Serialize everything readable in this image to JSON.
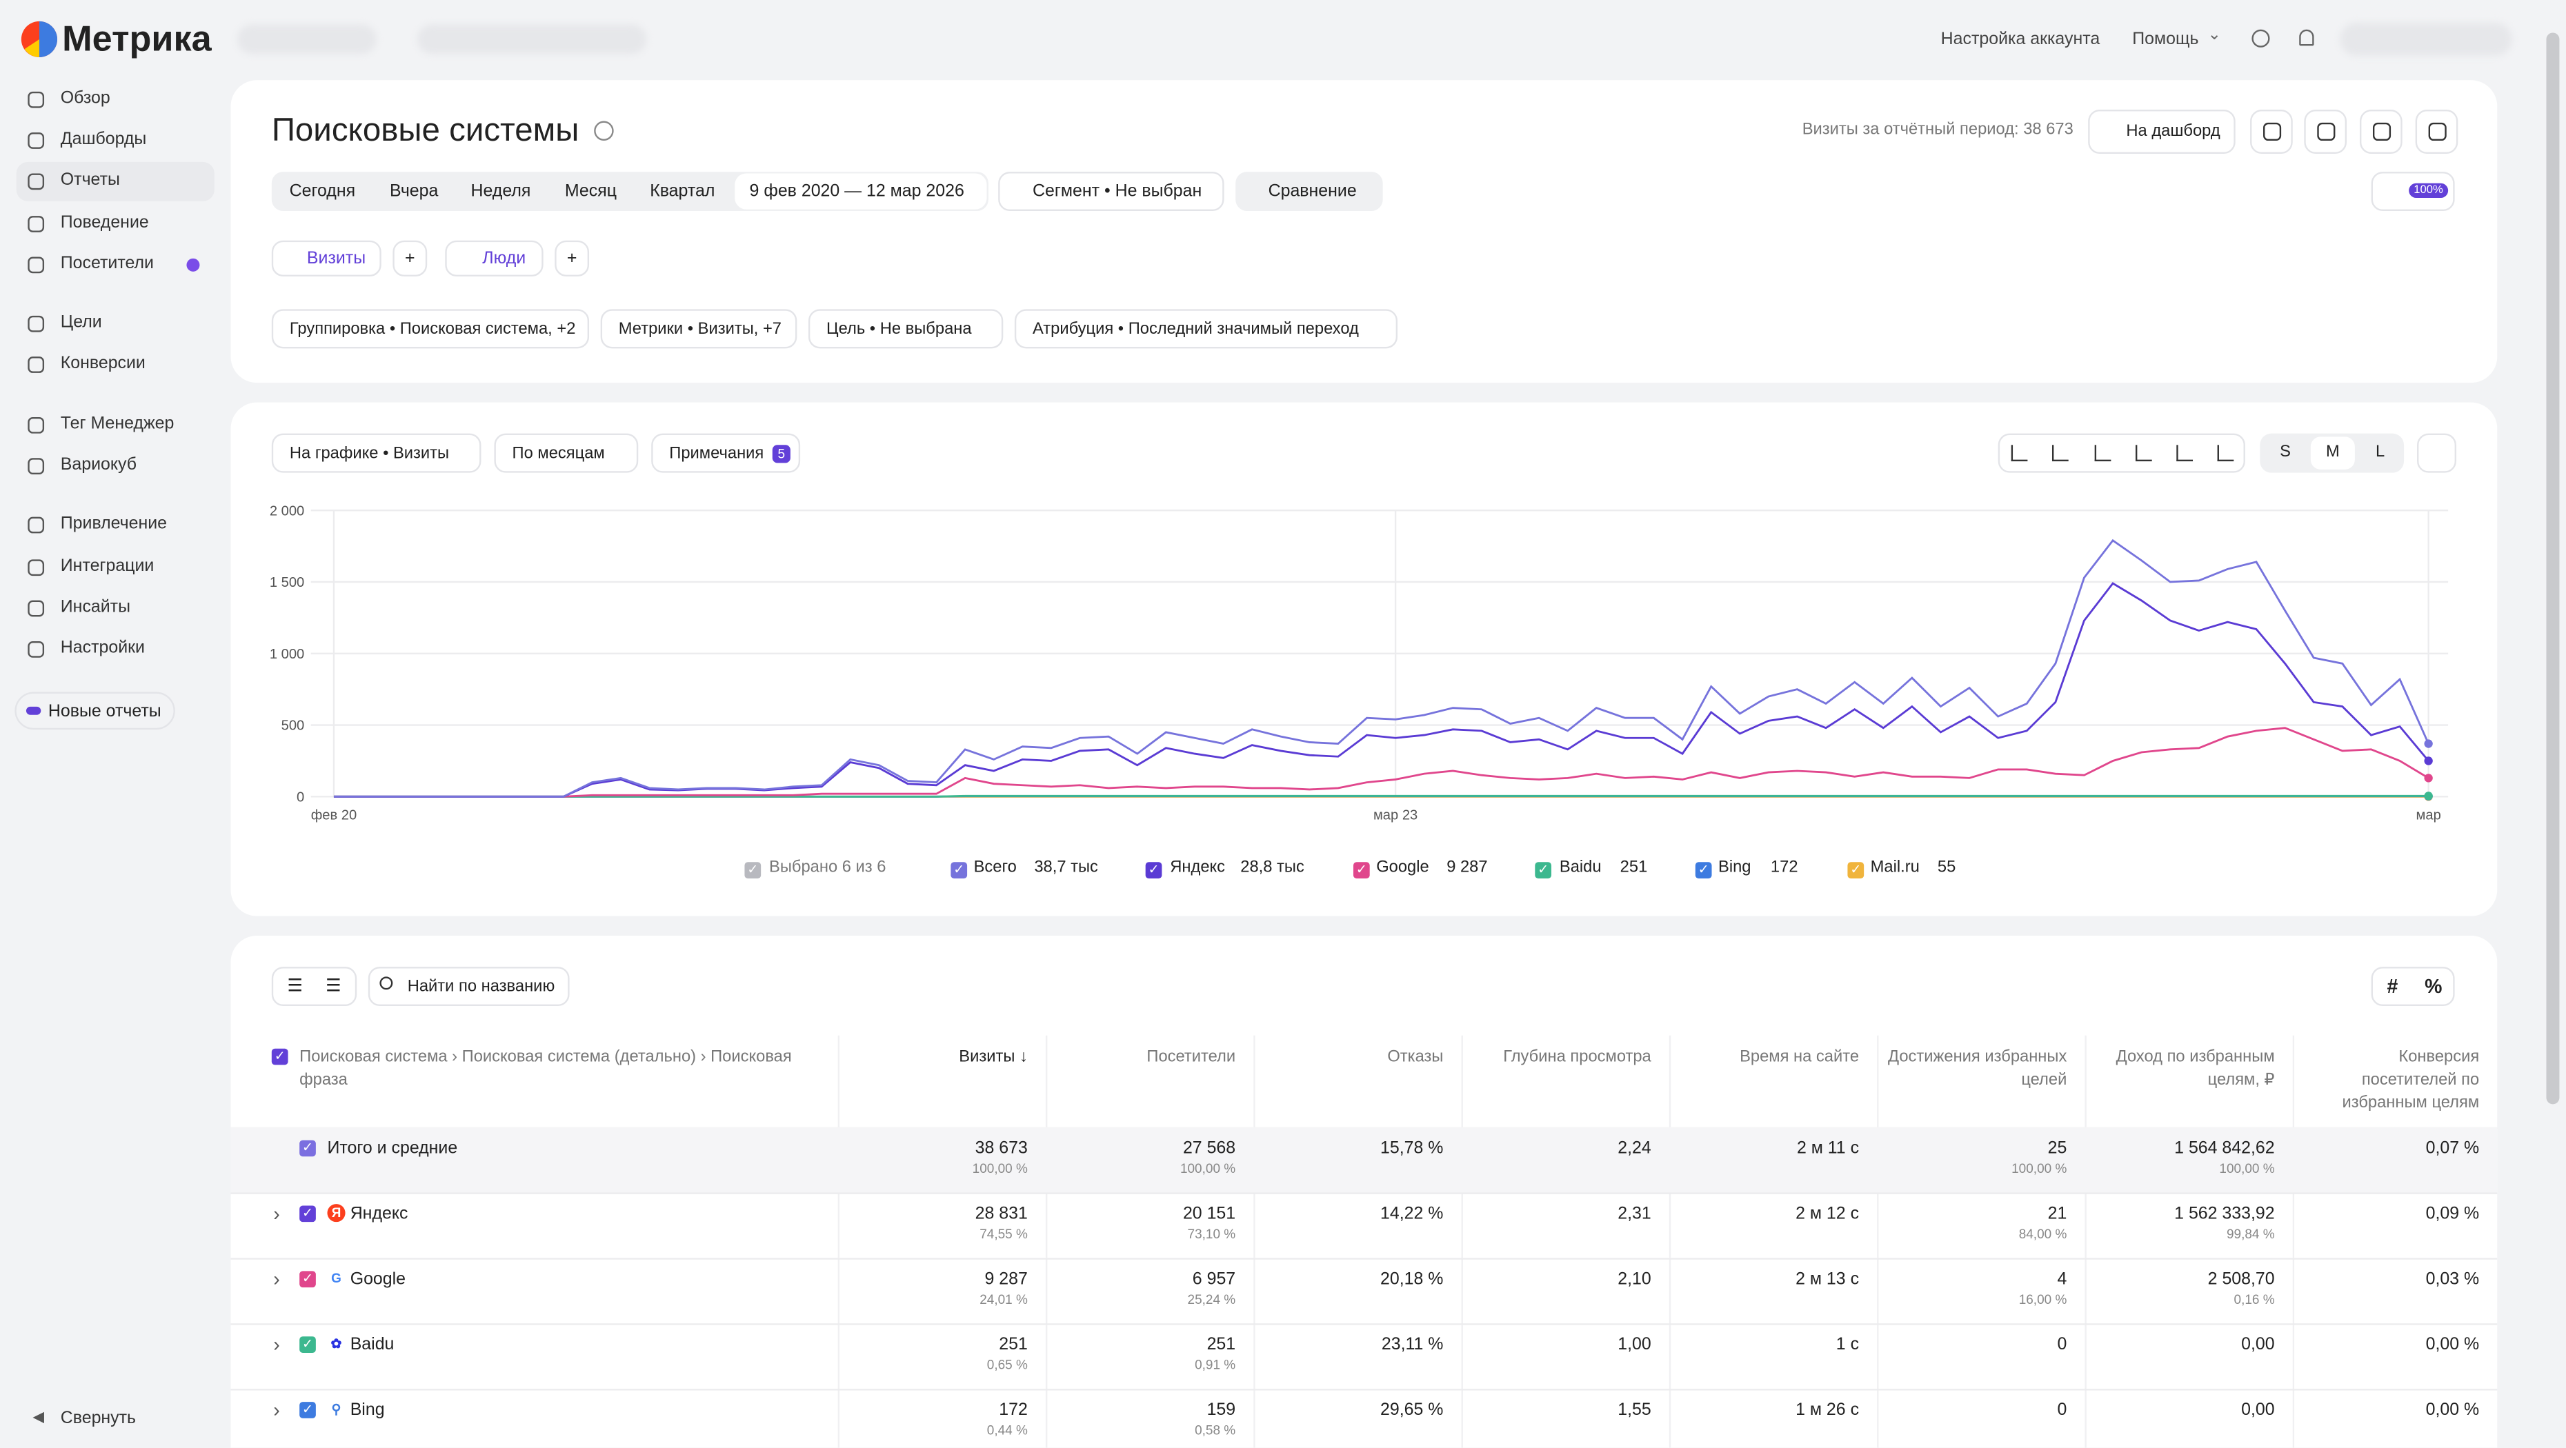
{
  "logo": "Метрика",
  "nav": [
    "Обзор",
    "Дашборды",
    "Отчеты",
    "Поведение",
    "Посетители",
    "Цели",
    "Конверсии",
    "Тег Менеджер",
    "Вариокуб",
    "Привлечение",
    "Интеграции",
    "Инсайты",
    "Настройки"
  ],
  "new_reports": "Новые отчеты",
  "collapse": "Свернуть",
  "topbar": {
    "account": "Настройка аккаунта",
    "help": "Помощь"
  },
  "header": {
    "title": "Поисковые системы",
    "visits_period": "Визиты за отчётный период: 38 673",
    "to_dashboard": "На дашборд"
  },
  "periods": [
    "Сегодня",
    "Вчера",
    "Неделя",
    "Месяц",
    "Квартал"
  ],
  "date_range": "9 фев 2020 — 12 мар 2026",
  "segment": "Сегмент • Не выбран",
  "compare": "Сравнение",
  "zoom": "100%",
  "tabs": [
    "Визиты",
    "Люди"
  ],
  "filters": [
    "Группировка • Поисковая система, +2",
    "Метрики • Визиты, +7",
    "Цель • Не выбрана",
    "Атрибуция • Последний значимый переход"
  ],
  "chart_controls": {
    "metric": "На графике • Визиты",
    "period": "По месяцам",
    "notes": "Примечания",
    "notes_count": "5",
    "sizes": [
      "S",
      "M",
      "L"
    ]
  },
  "chart_data": {
    "type": "line",
    "ylim": [
      0,
      2000
    ],
    "yticks": [
      0,
      500,
      {
        "value": 1000,
        "label": "1 000"
      },
      {
        "value": 1500,
        "label": "1 500"
      },
      {
        "value": 2000,
        "label": "2 000"
      }
    ],
    "xlim": [
      0,
      73
    ],
    "xticks": [
      {
        "value": 0,
        "label": "фев 20"
      },
      {
        "value": 37,
        "label": "мар 23"
      },
      {
        "value": 73,
        "label": "мар"
      }
    ],
    "grid": true,
    "legend_selected": "Выбрано 6 из 6",
    "series": [
      {
        "name": "Всего",
        "total_label": "38,7 тыс",
        "color": "#7673dc",
        "values": [
          0,
          0,
          0,
          0,
          0,
          0,
          0,
          0,
          0,
          100,
          130,
          60,
          50,
          60,
          60,
          50,
          70,
          80,
          260,
          220,
          110,
          100,
          330,
          260,
          350,
          340,
          410,
          420,
          300,
          450,
          410,
          370,
          470,
          420,
          380,
          370,
          550,
          540,
          570,
          620,
          610,
          510,
          550,
          460,
          620,
          550,
          550,
          400,
          770,
          580,
          700,
          750,
          650,
          800,
          650,
          830,
          630,
          760,
          560,
          650,
          930,
          1530,
          1790,
          1650,
          1500,
          1510,
          1590,
          1640,
          1300,
          970,
          930,
          640,
          820,
          370
        ]
      },
      {
        "name": "Яндекс",
        "total_label": "28,8 тыс",
        "color": "#5a3bd4",
        "values": [
          0,
          0,
          0,
          0,
          0,
          0,
          0,
          0,
          0,
          90,
          120,
          50,
          45,
          55,
          55,
          45,
          60,
          70,
          240,
          200,
          90,
          80,
          220,
          180,
          260,
          250,
          320,
          330,
          220,
          340,
          300,
          270,
          360,
          320,
          290,
          280,
          430,
          410,
          430,
          470,
          460,
          380,
          400,
          330,
          460,
          410,
          410,
          300,
          590,
          440,
          530,
          560,
          480,
          610,
          480,
          630,
          450,
          560,
          410,
          460,
          660,
          1230,
          1490,
          1370,
          1230,
          1160,
          1220,
          1170,
          930,
          660,
          630,
          430,
          490,
          250
        ]
      },
      {
        "name": "Google",
        "total_label": "9 287",
        "color": "#e0468c",
        "values": [
          0,
          0,
          0,
          0,
          0,
          0,
          0,
          0,
          0,
          10,
          10,
          10,
          10,
          10,
          10,
          10,
          10,
          20,
          20,
          20,
          20,
          20,
          130,
          90,
          80,
          70,
          80,
          60,
          70,
          60,
          70,
          70,
          60,
          60,
          50,
          60,
          100,
          120,
          160,
          180,
          150,
          130,
          120,
          130,
          160,
          130,
          140,
          120,
          170,
          130,
          170,
          180,
          170,
          140,
          170,
          140,
          140,
          130,
          190,
          190,
          160,
          150,
          250,
          310,
          330,
          340,
          420,
          460,
          480,
          400,
          320,
          330,
          250,
          130
        ]
      },
      {
        "name": "Baidu",
        "total_label": "251",
        "color": "#3cb88f",
        "values": [
          0,
          0,
          0,
          0,
          0,
          0,
          0,
          0,
          0,
          0,
          0,
          0,
          0,
          0,
          0,
          0,
          0,
          0,
          0,
          0,
          0,
          0,
          5,
          5,
          5,
          5,
          5,
          5,
          5,
          5,
          5,
          5,
          5,
          5,
          5,
          5,
          5,
          5,
          5,
          5,
          5,
          5,
          5,
          5,
          5,
          5,
          5,
          5,
          5,
          5,
          5,
          5,
          5,
          5,
          5,
          5,
          5,
          5,
          5,
          5,
          5,
          5,
          5,
          5,
          5,
          5,
          5,
          5,
          5,
          5,
          5,
          5,
          5,
          5
        ]
      },
      {
        "name": "Bing",
        "total_label": "172",
        "color": "#3d7be0",
        "values": [
          0,
          0,
          0,
          0,
          0,
          0,
          0,
          0,
          0,
          0,
          0,
          0,
          0,
          0,
          0,
          0,
          0,
          0,
          0,
          0,
          0,
          0,
          3,
          3,
          3,
          3,
          3,
          3,
          3,
          3,
          3,
          3,
          3,
          3,
          3,
          3,
          3,
          3,
          3,
          3,
          3,
          3,
          3,
          3,
          3,
          3,
          3,
          3,
          3,
          3,
          3,
          3,
          3,
          3,
          3,
          3,
          3,
          3,
          3,
          3,
          3,
          3,
          3,
          3,
          3,
          3,
          3,
          3,
          3,
          3,
          3,
          3,
          3,
          3
        ]
      },
      {
        "name": "Mail.ru",
        "total_label": "55",
        "color": "#f0b43c",
        "values": [
          0,
          0,
          0,
          0,
          0,
          0,
          0,
          0,
          0,
          0,
          0,
          0,
          0,
          0,
          0,
          0,
          0,
          0,
          0,
          0,
          0,
          0,
          0,
          0,
          0,
          0,
          0,
          0,
          0,
          0,
          0,
          0,
          0,
          0,
          0,
          0,
          0,
          0,
          0,
          0,
          0,
          0,
          0,
          0,
          0,
          0,
          0,
          0,
          0,
          0,
          0,
          0,
          0,
          0,
          0,
          0,
          0,
          0,
          0,
          0,
          0,
          0,
          0,
          0,
          0,
          0,
          0,
          0,
          0,
          0,
          0,
          0,
          0,
          0
        ]
      }
    ]
  },
  "search": "Найти по названию",
  "mode_buttons": [
    "#",
    "%"
  ],
  "table": {
    "columns": [
      "Поисковая система › Поисковая система (детально) › Поисковая фраза",
      "Визиты ↓",
      "Посетители",
      "Отказы",
      "Глубина просмотра",
      "Время на сайте",
      "Достижения избранных целей",
      "Доход по избранным целям, ₽",
      "Конверсия посетителей по избранным целям"
    ],
    "rows": [
      {
        "name": "Итого и средние",
        "cells": [
          [
            "38 673",
            "100,00 %"
          ],
          [
            "27 568",
            "100,00 %"
          ],
          [
            "15,78 %"
          ],
          [
            "2,24"
          ],
          [
            "2 м 11 с"
          ],
          [
            "25",
            "100,00 %"
          ],
          [
            "1 564 842,62",
            "100,00 %"
          ],
          [
            "0,07 %"
          ]
        ]
      },
      {
        "name": "Яндекс",
        "cells": [
          [
            "28 831",
            "74,55 %"
          ],
          [
            "20 151",
            "73,10 %"
          ],
          [
            "14,22 %"
          ],
          [
            "2,31"
          ],
          [
            "2 м 12 с"
          ],
          [
            "21",
            "84,00 %"
          ],
          [
            "1 562 333,92",
            "99,84 %"
          ],
          [
            "0,09 %"
          ]
        ]
      },
      {
        "name": "Google",
        "cells": [
          [
            "9 287",
            "24,01 %"
          ],
          [
            "6 957",
            "25,24 %"
          ],
          [
            "20,18 %"
          ],
          [
            "2,10"
          ],
          [
            "2 м 13 с"
          ],
          [
            "4",
            "16,00 %"
          ],
          [
            "2 508,70",
            "0,16 %"
          ],
          [
            "0,03 %"
          ]
        ]
      },
      {
        "name": "Baidu",
        "cells": [
          [
            "251",
            "0,65 %"
          ],
          [
            "251",
            "0,91 %"
          ],
          [
            "23,11 %"
          ],
          [
            "1,00"
          ],
          [
            "1 с"
          ],
          [
            "0"
          ],
          [
            "0,00"
          ],
          [
            "0,00 %"
          ]
        ]
      },
      {
        "name": "Bing",
        "cells": [
          [
            "172",
            "0,44 %"
          ],
          [
            "159",
            "0,58 %"
          ],
          [
            "29,65 %"
          ],
          [
            "1,55"
          ],
          [
            "1 м 26 с"
          ],
          [
            "0"
          ],
          [
            "0,00"
          ],
          [
            "0,00 %"
          ]
        ]
      }
    ]
  }
}
